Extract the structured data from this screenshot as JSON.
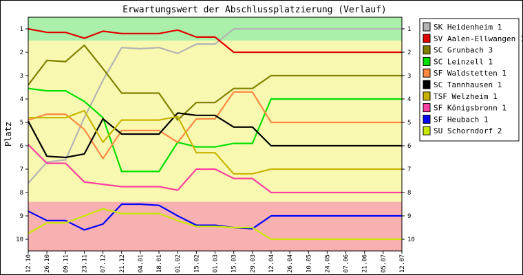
{
  "chart_data": {
    "type": "line",
    "title": "Erwartungswert der Abschlussplatzierung (Verlauf)",
    "ylabel": "Platz",
    "xlabel": "",
    "ylim": [
      1,
      10
    ],
    "y_ticks": [
      "1",
      "2",
      "3",
      "4",
      "5",
      "6",
      "7",
      "8",
      "9",
      "10"
    ],
    "categories": [
      "12.10",
      "26.10",
      "09.11",
      "23.11",
      "07.12",
      "21.12",
      "04.01",
      "18.01",
      "01.02",
      "15.02",
      "01.03",
      "15.03",
      "29.03",
      "12.04",
      "26.04",
      "10.05",
      "24.05",
      "07.06",
      "21.06",
      "05.07",
      "12.07"
    ],
    "zones": [
      {
        "color": "#aaf0aa",
        "from": 0.5,
        "to": 1.5
      },
      {
        "color": "#f8f8b0",
        "from": 1.5,
        "to": 8.4
      },
      {
        "color": "#f8b0b0",
        "from": 8.4,
        "to": 10.5
      }
    ],
    "legend_position": "right",
    "series": [
      {
        "name": "SK Heidenheim 1",
        "color": "#b4b4b4",
        "values": [
          7.6,
          6.7,
          6.6,
          4.8,
          3.2,
          1.8,
          1.85,
          1.8,
          2.05,
          1.65,
          1.65,
          1.0,
          1.0,
          1.0,
          1.0,
          1.0,
          1.0,
          1.0,
          1.0,
          1.0,
          1.0
        ]
      },
      {
        "name": "SV Aalen-Ellwangen 1",
        "color": "#e00000",
        "values": [
          1.0,
          1.15,
          1.15,
          1.4,
          1.1,
          1.2,
          1.2,
          1.2,
          1.05,
          1.35,
          1.35,
          2.0,
          2.0,
          2.0,
          2.0,
          2.0,
          2.0,
          2.0,
          2.0,
          2.0,
          2.0
        ]
      },
      {
        "name": "SC Grunbach 3",
        "color": "#808000",
        "values": [
          3.4,
          2.35,
          2.4,
          1.7,
          2.7,
          3.75,
          3.75,
          3.75,
          4.9,
          4.15,
          4.15,
          3.55,
          3.55,
          3.0,
          3.0,
          3.0,
          3.0,
          3.0,
          3.0,
          3.0,
          3.0
        ]
      },
      {
        "name": "SC Leinzell 1",
        "color": "#00e000",
        "values": [
          3.55,
          3.65,
          3.65,
          4.1,
          4.8,
          7.1,
          7.1,
          7.1,
          5.85,
          6.05,
          6.05,
          5.9,
          5.9,
          4.0,
          4.0,
          4.0,
          4.0,
          4.0,
          4.0,
          4.0,
          4.0
        ]
      },
      {
        "name": "SF Waldstetten 1",
        "color": "#ff8840",
        "values": [
          4.9,
          4.65,
          4.65,
          5.3,
          6.55,
          5.35,
          5.35,
          5.35,
          5.85,
          4.85,
          4.85,
          3.7,
          3.7,
          5.0,
          5.0,
          5.0,
          5.0,
          5.0,
          5.0,
          5.0,
          5.0
        ]
      },
      {
        "name": "SC Tannhausen 1",
        "color": "#000000",
        "values": [
          4.95,
          6.45,
          6.5,
          6.35,
          4.85,
          5.5,
          5.5,
          5.5,
          4.6,
          4.7,
          4.7,
          5.2,
          5.2,
          6.0,
          6.0,
          6.0,
          6.0,
          6.0,
          6.0,
          6.0,
          6.0
        ]
      },
      {
        "name": "TSF Welzheim 1",
        "color": "#c8b400",
        "values": [
          4.8,
          4.8,
          4.8,
          4.5,
          5.85,
          4.9,
          4.9,
          4.9,
          4.75,
          6.3,
          6.3,
          7.2,
          7.2,
          7.0,
          7.0,
          7.0,
          7.0,
          7.0,
          7.0,
          7.0,
          7.0
        ]
      },
      {
        "name": "SF Königsbronn 1",
        "color": "#ff40a0",
        "values": [
          5.95,
          6.75,
          6.75,
          7.55,
          7.65,
          7.75,
          7.75,
          7.75,
          7.9,
          7.0,
          7.0,
          7.4,
          7.4,
          8.0,
          8.0,
          8.0,
          8.0,
          8.0,
          8.0,
          8.0,
          8.0
        ]
      },
      {
        "name": "SF Heubach 1",
        "color": "#0000ff",
        "values": [
          8.8,
          9.2,
          9.2,
          9.6,
          9.35,
          8.5,
          8.5,
          8.55,
          9.0,
          9.4,
          9.4,
          9.5,
          9.55,
          9.0,
          9.0,
          9.0,
          9.0,
          9.0,
          9.0,
          9.0,
          9.0
        ]
      },
      {
        "name": "SU Schorndorf 2",
        "color": "#c8e800",
        "values": [
          9.75,
          9.3,
          9.3,
          9.0,
          8.7,
          8.9,
          8.9,
          8.9,
          9.2,
          9.45,
          9.45,
          9.5,
          9.5,
          10.0,
          10.0,
          10.0,
          10.0,
          10.0,
          10.0,
          10.0,
          10.0
        ]
      }
    ]
  }
}
